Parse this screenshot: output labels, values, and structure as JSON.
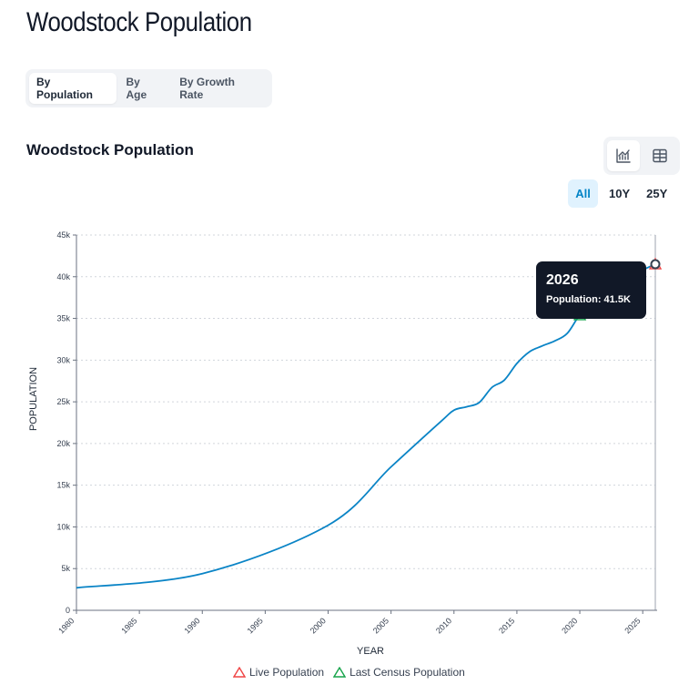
{
  "page": {
    "title": "Woodstock Population"
  },
  "tabs": [
    {
      "label": "By Population",
      "active": true
    },
    {
      "label": "By Age",
      "active": false
    },
    {
      "label": "By Growth Rate",
      "active": false
    }
  ],
  "chart_header": {
    "title": "Woodstock Population"
  },
  "view_toggle": {
    "chart_icon": "line-chart-icon",
    "table_icon": "table-grid-icon",
    "active": "chart"
  },
  "range_buttons": [
    {
      "label": "All",
      "active": true
    },
    {
      "label": "10Y",
      "active": false
    },
    {
      "label": "25Y",
      "active": false
    }
  ],
  "tooltip": {
    "year": "2026",
    "line": "Population: 41.5K"
  },
  "colors": {
    "line": "#0a84c6",
    "live": "#ef4444",
    "census": "#16a34a",
    "accent": "#0284c7"
  },
  "chart_data": {
    "type": "line",
    "xlabel": "YEAR",
    "ylabel": "POPULATION",
    "xlim": [
      1980,
      2026
    ],
    "ylim": [
      0,
      45000
    ],
    "x_ticks": [
      1980,
      1985,
      1990,
      1995,
      2000,
      2005,
      2010,
      2015,
      2020,
      2025
    ],
    "y_ticks": [
      0,
      5000,
      10000,
      15000,
      20000,
      25000,
      30000,
      35000,
      40000,
      45000
    ],
    "y_tick_labels": [
      "0",
      "5k",
      "10k",
      "15k",
      "20k",
      "25k",
      "30k",
      "35k",
      "40k",
      "45k"
    ],
    "grid": true,
    "series": [
      {
        "x": [
          1980,
          1990,
          2000,
          2005,
          2009,
          2010,
          2011,
          2012,
          2013,
          2014,
          2015,
          2016,
          2017,
          2018,
          2019,
          2020,
          2021,
          2022,
          2023,
          2024,
          2025,
          2026
        ],
        "y": [
          2700,
          4400,
          10200,
          17200,
          22700,
          24000,
          24400,
          24900,
          26700,
          27600,
          29600,
          31000,
          31700,
          32300,
          33200,
          35400,
          36600,
          37900,
          39000,
          39800,
          40800,
          41500
        ]
      }
    ],
    "markers": [
      {
        "year": 2020,
        "value": 35400,
        "type": "census"
      },
      {
        "year": 2026,
        "value": 41500,
        "type": "live"
      }
    ],
    "legend": [
      "Live Population",
      "Last Census Population"
    ],
    "legend_position": "bottom"
  }
}
